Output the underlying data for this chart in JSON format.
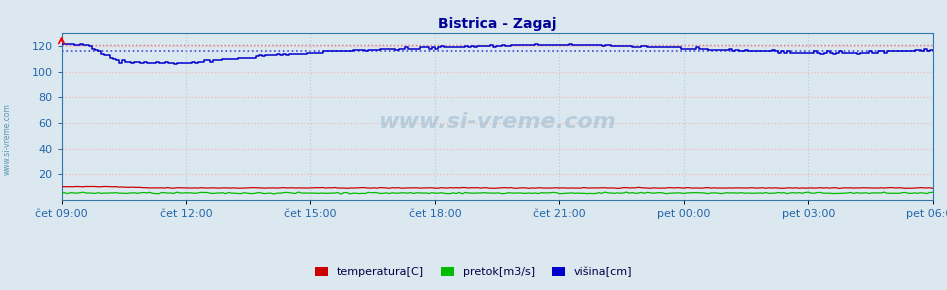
{
  "title": "Bistrica - Zagaj",
  "title_color": "#000099",
  "background_color": "#dce8f0",
  "plot_bg_color": "#dce8f0",
  "ylim": [
    0,
    130
  ],
  "yticks": [
    20,
    40,
    60,
    80,
    100,
    120
  ],
  "ylabel_color": "#2266aa",
  "grid_color_h": "#ffaaaa",
  "grid_color_v": "#aaccdd",
  "n_points": 288,
  "ref_line_blue": 116,
  "ref_line_red": 121,
  "x_tick_labels": [
    "čet 09:00",
    "čet 12:00",
    "čet 15:00",
    "čet 18:00",
    "čet 21:00",
    "pet 00:00",
    "pet 03:00",
    "pet 06:00"
  ],
  "x_tick_positions_frac": [
    0.0,
    0.1428,
    0.2857,
    0.4285,
    0.5714,
    0.7142,
    0.8571,
    1.0
  ],
  "line_colors": {
    "temperatura": "#cc0000",
    "pretok": "#00bb00",
    "visina": "#0000cc"
  },
  "watermark_text": "www.si-vreme.com",
  "watermark_color": "#aabbcc",
  "watermark_alpha": 0.55,
  "sidebar_text": "www.si-vreme.com",
  "sidebar_color": "#4488aa",
  "legend_labels": [
    "temperatura[C]",
    "pretok[m3/s]",
    "višina[cm]"
  ],
  "fig_bg": "#dce8f0",
  "spine_color": "#3377aa",
  "tick_label_color": "#2266aa",
  "tick_label_size": 8
}
